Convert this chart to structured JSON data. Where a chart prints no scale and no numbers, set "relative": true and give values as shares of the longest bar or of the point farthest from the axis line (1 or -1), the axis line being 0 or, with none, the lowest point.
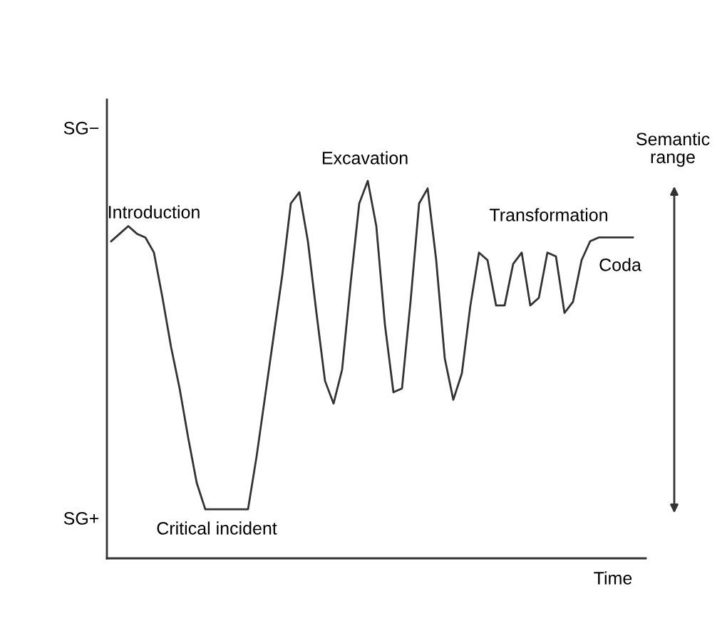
{
  "chart_data": {
    "type": "line",
    "xlabel": "Time",
    "relative": true,
    "categories": [
      null,
      null,
      null,
      null,
      null,
      null,
      null,
      null,
      null,
      null,
      null,
      null,
      null,
      null,
      null,
      null,
      null,
      null,
      null,
      null,
      null,
      null,
      null,
      null,
      null,
      null,
      null,
      null,
      null,
      null,
      null,
      null,
      null,
      null,
      null,
      null,
      null,
      null,
      null,
      null,
      null,
      null,
      null,
      null,
      null,
      null,
      null,
      null,
      null,
      null,
      null,
      null,
      null,
      null,
      null,
      null,
      null,
      null,
      null,
      null,
      null,
      null
    ],
    "series": [
      {
        "color": "#333333",
        "values": [
          0.84,
          0.86,
          0.88,
          0.86,
          0.85,
          0.81,
          0.69,
          0.56,
          0.45,
          0.32,
          0.2,
          0.13,
          0.13,
          0.13,
          0.13,
          0.13,
          0.13,
          0.27,
          0.43,
          0.59,
          0.75,
          0.94,
          0.97,
          0.84,
          0.65,
          0.47,
          0.41,
          0.5,
          0.73,
          0.94,
          1.0,
          0.88,
          0.62,
          0.44,
          0.45,
          0.68,
          0.94,
          0.98,
          0.79,
          0.53,
          0.42,
          0.49,
          0.67,
          0.81,
          0.79,
          0.67,
          0.67,
          0.78,
          0.81,
          0.67,
          0.69,
          0.81,
          0.8,
          0.65,
          0.68,
          0.79,
          0.84,
          0.85,
          0.85,
          0.85,
          0.85,
          0.85
        ]
      }
    ],
    "grid": false,
    "legend": false,
    "marker": "none",
    "line_style": "solid",
    "annotations": [
      "SG−",
      "SG+",
      "Introduction",
      "Critical incident",
      "Excavation",
      "Transformation",
      "Coda",
      "Semantic\nrange"
    ]
  }
}
